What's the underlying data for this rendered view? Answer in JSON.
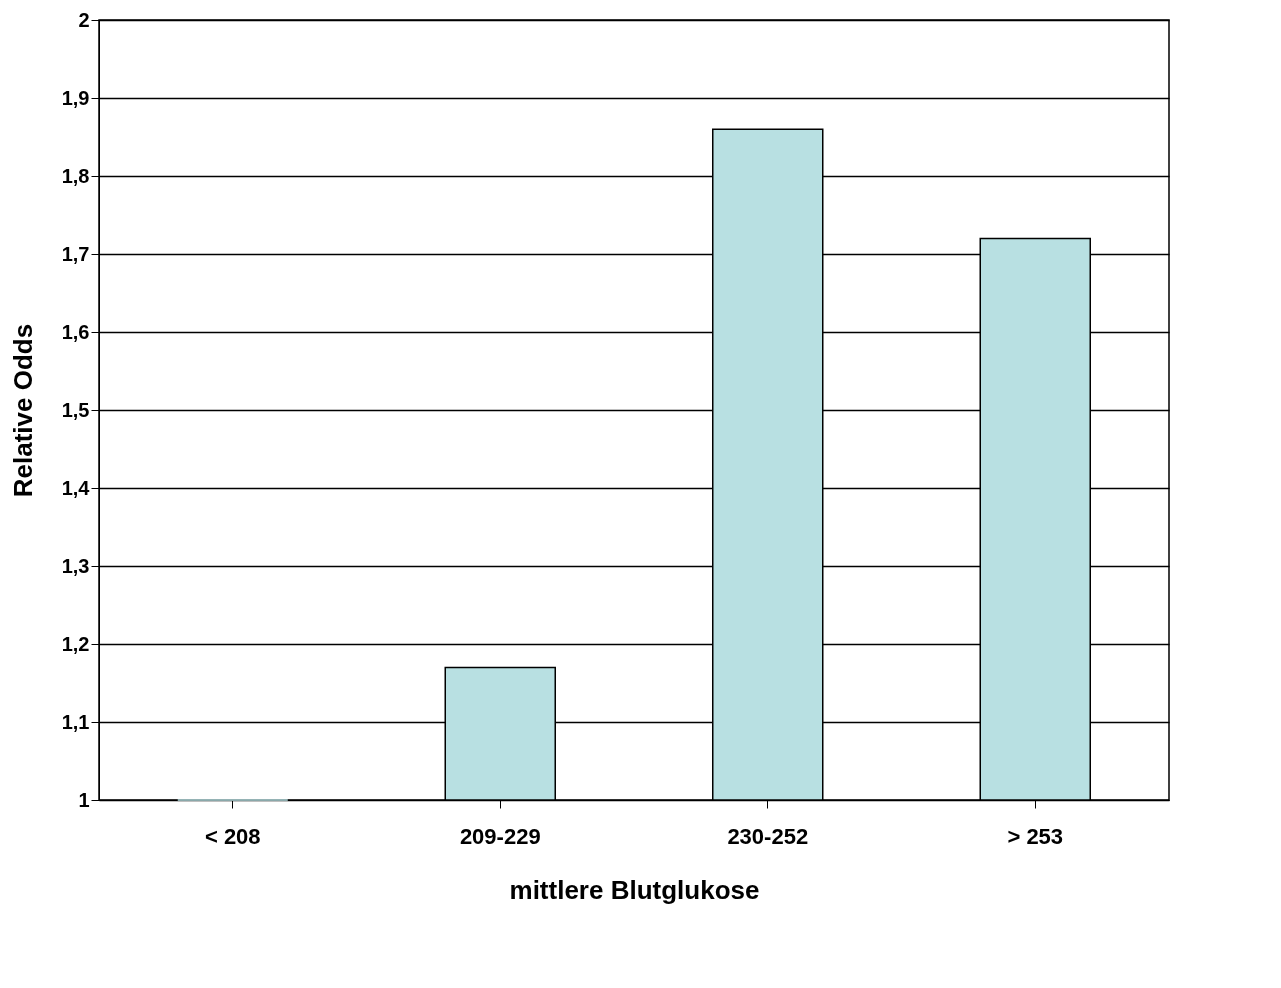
{
  "chart_data": {
    "type": "bar",
    "xlabel": "mittlere Blutglukose",
    "ylabel": "Relative Odds",
    "categories": [
      "< 208",
      "209-229",
      "230-252",
      "> 253"
    ],
    "values": [
      1.0,
      1.17,
      1.86,
      1.72
    ],
    "color": "#b8e0e2",
    "ylim": [
      1,
      2
    ],
    "yticks": [
      1,
      {
        "value": 1.1,
        "label": "1,1"
      },
      {
        "value": 1.2,
        "label": "1,2"
      },
      {
        "value": 1.3,
        "label": "1,3"
      },
      {
        "value": 1.4,
        "label": "1,4"
      },
      {
        "value": 1.5,
        "label": "1,5"
      },
      {
        "value": 1.6,
        "label": "1,6"
      },
      {
        "value": 1.7,
        "label": "1,7"
      },
      {
        "value": 1.8,
        "label": "1,8"
      },
      {
        "value": 1.9,
        "label": "1,9"
      },
      2
    ],
    "grid": "y"
  }
}
